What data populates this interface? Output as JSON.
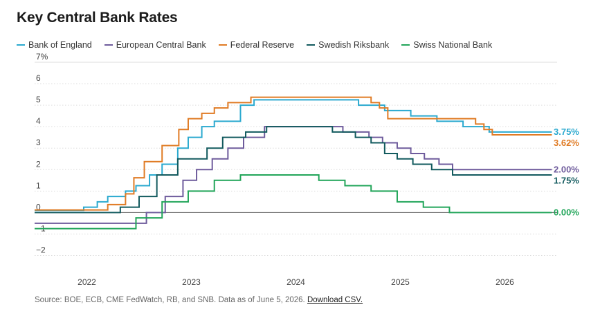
{
  "title": "Key Central Bank Rates",
  "source": {
    "text": "Source: BOE, ECB, CME FedWatch, RB, and SNB. Data as of June 5, 2026.",
    "link": "Download CSV."
  },
  "chart_data": {
    "type": "line",
    "step": true,
    "title": "Key Central Bank Rates",
    "ylim": [
      -2.5,
      7
    ],
    "y_ticks": [
      -2,
      -1,
      0,
      1,
      2,
      3,
      4,
      5,
      6,
      7
    ],
    "y_tick_labels": [
      "−2",
      "−1",
      "0",
      "1",
      "2",
      "3",
      "4",
      "5",
      "6",
      "7%"
    ],
    "xlim": [
      2021.5,
      2026.5
    ],
    "x_ticks": [
      2022,
      2023,
      2024,
      2025,
      2026
    ],
    "x_tick_labels": [
      "2022",
      "2023",
      "2024",
      "2025",
      "2026"
    ],
    "grid": true,
    "legend": "top-left",
    "series": [
      {
        "name": "Bank of England",
        "color": "#2aa9cf",
        "end_label": "3.75%",
        "x": [
          2021.5,
          2021.97,
          2022.1,
          2022.2,
          2022.37,
          2022.47,
          2022.6,
          2022.72,
          2022.87,
          2022.97,
          2023.1,
          2023.22,
          2023.47,
          2023.6,
          2024.6,
          2024.85,
          2025.1,
          2025.35,
          2025.6,
          2025.85,
          2026.1,
          2026.45
        ],
        "y": [
          0.1,
          0.25,
          0.5,
          0.75,
          1.0,
          1.25,
          1.75,
          2.25,
          3.0,
          3.5,
          4.0,
          4.25,
          5.0,
          5.25,
          5.0,
          4.75,
          4.5,
          4.25,
          4.0,
          3.75,
          3.75,
          3.75
        ]
      },
      {
        "name": "European Central Bank",
        "color": "#6e5b9c",
        "end_label": "2.00%",
        "x": [
          2021.5,
          2022.57,
          2022.75,
          2022.92,
          2023.05,
          2023.2,
          2023.35,
          2023.5,
          2023.7,
          2024.45,
          2024.7,
          2024.83,
          2024.97,
          2025.1,
          2025.23,
          2025.37,
          2025.5,
          2026.45
        ],
        "y": [
          -0.5,
          0.0,
          0.75,
          1.5,
          2.0,
          2.5,
          3.0,
          3.5,
          4.0,
          3.75,
          3.5,
          3.25,
          3.0,
          2.75,
          2.5,
          2.25,
          2.0,
          2.0
        ]
      },
      {
        "name": "Federal Reserve",
        "color": "#e07b24",
        "end_label": "3.62%",
        "x": [
          2021.5,
          2022.2,
          2022.37,
          2022.45,
          2022.55,
          2022.72,
          2022.88,
          2022.97,
          2023.1,
          2023.22,
          2023.35,
          2023.57,
          2024.72,
          2024.8,
          2024.88,
          2025.72,
          2025.8,
          2025.88,
          2026.0,
          2026.45
        ],
        "y": [
          0.12,
          0.37,
          0.87,
          1.62,
          2.37,
          3.12,
          3.87,
          4.37,
          4.62,
          4.87,
          5.12,
          5.37,
          5.12,
          4.87,
          4.37,
          4.12,
          3.87,
          3.62,
          3.62,
          3.62
        ]
      },
      {
        "name": "Swedish Riksbank",
        "color": "#125a5e",
        "end_label": "1.75%",
        "x": [
          2021.5,
          2022.32,
          2022.5,
          2022.67,
          2022.87,
          2023.15,
          2023.3,
          2023.52,
          2023.72,
          2024.35,
          2024.57,
          2024.72,
          2024.85,
          2024.97,
          2025.12,
          2025.3,
          2025.5,
          2025.82,
          2026.45
        ],
        "y": [
          0.0,
          0.25,
          0.75,
          1.75,
          2.5,
          3.0,
          3.5,
          3.75,
          4.0,
          3.75,
          3.5,
          3.25,
          2.75,
          2.5,
          2.25,
          2.0,
          1.75,
          1.75,
          1.75
        ]
      },
      {
        "name": "Swiss National Bank",
        "color": "#21a559",
        "end_label": "0.00%",
        "x": [
          2021.5,
          2022.47,
          2022.72,
          2022.97,
          2023.22,
          2023.47,
          2024.22,
          2024.47,
          2024.72,
          2024.97,
          2025.22,
          2025.47,
          2026.45
        ],
        "y": [
          -0.75,
          -0.25,
          0.5,
          1.0,
          1.5,
          1.75,
          1.5,
          1.25,
          1.0,
          0.5,
          0.25,
          0.0,
          0.0
        ]
      }
    ]
  }
}
